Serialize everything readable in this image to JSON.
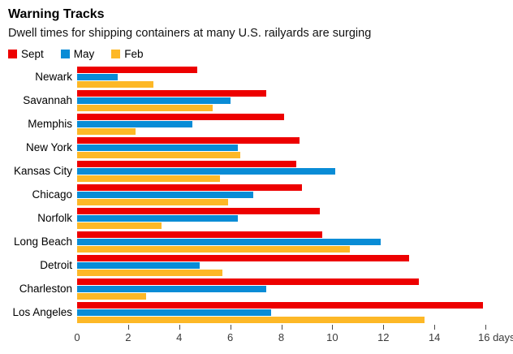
{
  "header": {
    "title": "Warning Tracks",
    "subtitle": "Dwell times for shipping containers at many U.S. railyards are surging"
  },
  "chart_data": {
    "type": "bar",
    "orientation": "horizontal",
    "title": "Warning Tracks",
    "subtitle": "Dwell times for shipping containers at many U.S. railyards are surging",
    "unit": "days",
    "categories": [
      "Newark",
      "Savannah",
      "Memphis",
      "New York",
      "Kansas City",
      "Chicago",
      "Norfolk",
      "Long Beach",
      "Detroit",
      "Charleston",
      "Los Angeles"
    ],
    "series": [
      {
        "name": "Sept",
        "color": "#ed0000",
        "values": [
          4.7,
          7.4,
          8.1,
          8.7,
          8.6,
          8.8,
          9.5,
          9.6,
          13.0,
          13.4,
          15.9
        ]
      },
      {
        "name": "May",
        "color": "#098cd6",
        "values": [
          1.6,
          6.0,
          4.5,
          6.3,
          10.1,
          6.9,
          6.3,
          11.9,
          4.8,
          7.4,
          7.6
        ]
      },
      {
        "name": "Feb",
        "color": "#fdb827",
        "values": [
          3.0,
          5.3,
          2.3,
          6.4,
          5.6,
          5.9,
          3.3,
          10.7,
          5.7,
          2.7,
          13.6
        ]
      }
    ],
    "xlim": [
      0,
      16
    ],
    "x_ticks": [
      0,
      2,
      4,
      6,
      8,
      10,
      12,
      14,
      16
    ],
    "last_tick_label": "16 days",
    "grid": false,
    "legend_position": "top-left"
  }
}
